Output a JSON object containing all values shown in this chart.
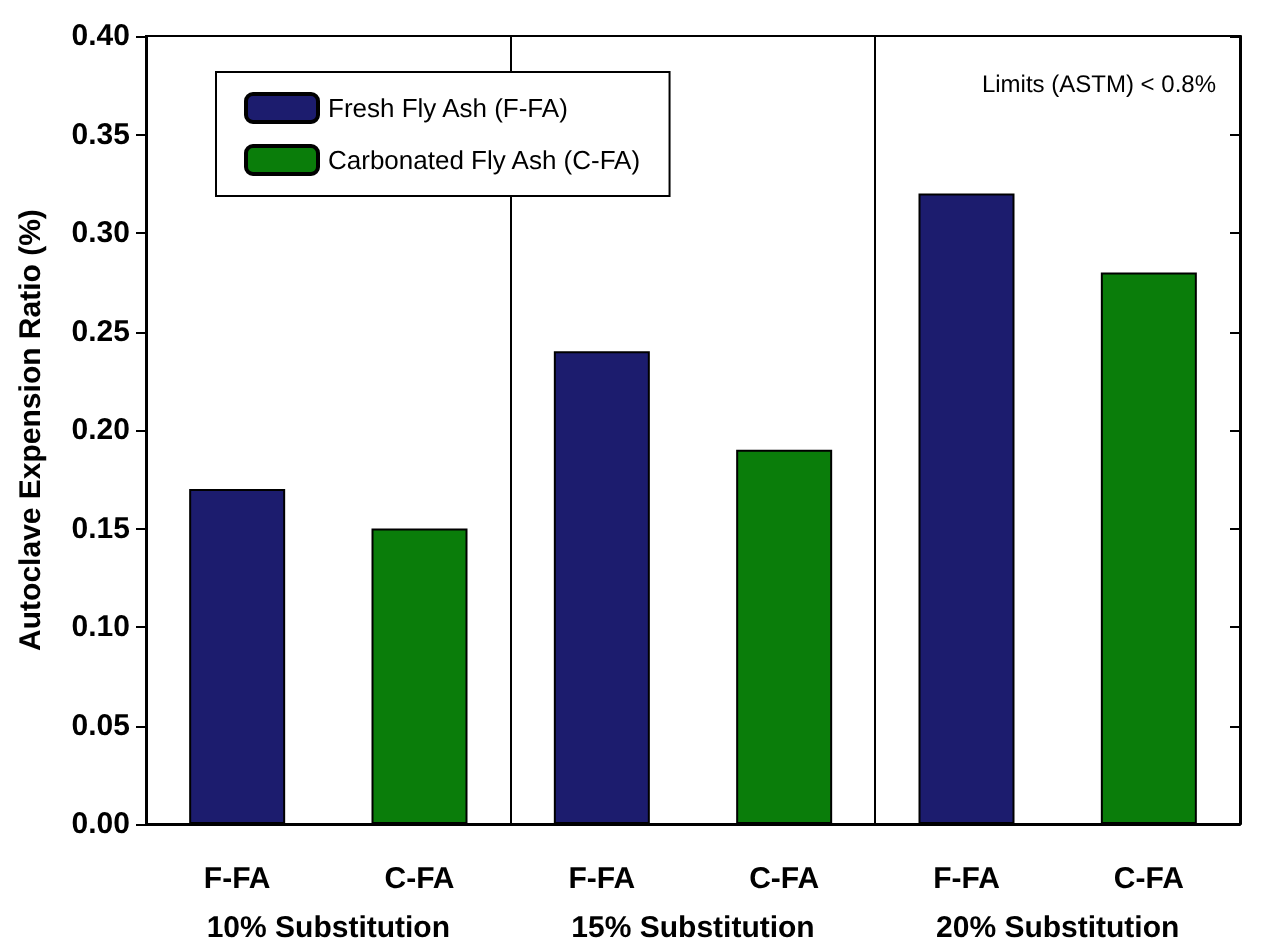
{
  "chart_data": {
    "type": "bar",
    "ylabel": "Autoclave Expension Ratio (%)",
    "categories": [
      "F-FA",
      "C-FA",
      "F-FA",
      "C-FA",
      "F-FA",
      "C-FA"
    ],
    "series": [
      {
        "name": "Fresh Fly Ash (F-FA)",
        "color": "#1c1c6e",
        "values": [
          0.17,
          null,
          0.24,
          null,
          0.32,
          null
        ]
      },
      {
        "name": "Carbonated Fly Ash (C-FA)",
        "color": "#0a7d0a",
        "values": [
          null,
          0.15,
          null,
          0.19,
          null,
          0.28
        ]
      }
    ],
    "ylim": [
      0,
      0.4
    ],
    "yticks": [
      {
        "value": 0,
        "label": "0.00"
      },
      {
        "value": 0.05,
        "label": "0.05"
      },
      {
        "value": 0.1,
        "label": "0.10"
      },
      {
        "value": 0.15,
        "label": "0.15"
      },
      {
        "value": 0.2,
        "label": "0.20"
      },
      {
        "value": 0.25,
        "label": "0.25"
      },
      {
        "value": 0.3,
        "label": "0.30"
      },
      {
        "value": 0.35,
        "label": "0.35"
      },
      {
        "value": 0.4,
        "label": "0.40"
      }
    ],
    "annotations": [
      "10% Substitution",
      "15% Substitution",
      "20% Substitution",
      "Limits (ASTM) < 0.8%"
    ],
    "legend": "top left",
    "grid": false
  }
}
